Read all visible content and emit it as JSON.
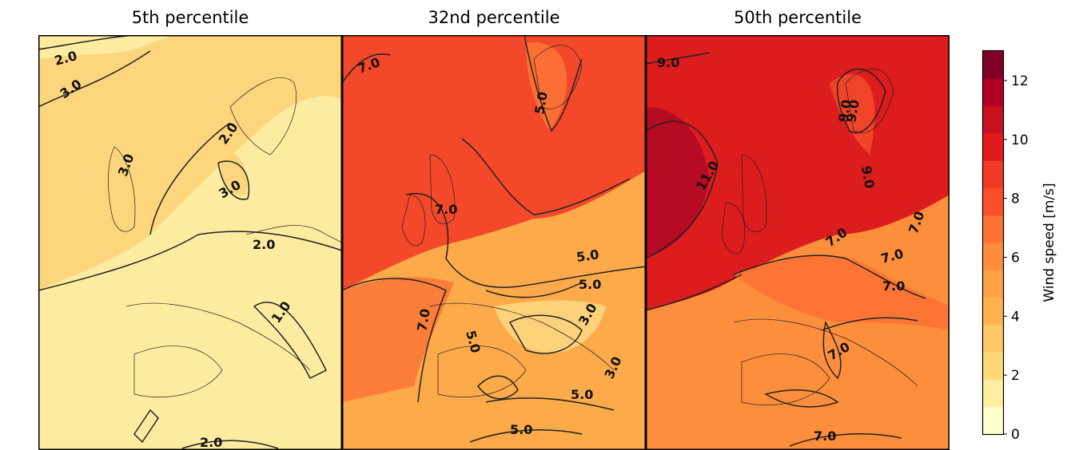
{
  "panels": [
    {
      "title": "5th percentile",
      "contour_labels": [
        "2.0",
        "3.0",
        "3.0",
        "2.0",
        "3.0",
        "2.0",
        "1.0",
        "2.0"
      ]
    },
    {
      "title": "32nd percentile",
      "contour_labels": [
        "7.0",
        "5.0",
        "7.0",
        "5.0",
        "5.0",
        "7.0",
        "3.0",
        "5.0",
        "3.0",
        "5.0",
        "5.0"
      ]
    },
    {
      "title": "50th percentile",
      "contour_labels": [
        "9.0",
        "9.0",
        "9.0",
        "11.0",
        "9.0",
        "7.0",
        "7.0",
        "7.0",
        "7.0",
        "7.0",
        "7.0"
      ]
    }
  ],
  "colorbar": {
    "label": "Wind speed [m/s]",
    "ticks": [
      "0",
      "2",
      "4",
      "6",
      "8",
      "10",
      "12"
    ],
    "range": [
      0,
      13
    ],
    "colors": [
      "#ffffcc",
      "#ffeda0",
      "#fed976",
      "#fdc967",
      "#feb24c",
      "#fea245",
      "#fd8d3c",
      "#fd7235",
      "#fc4e2a",
      "#f03a24",
      "#e31a1c",
      "#c8101f",
      "#b10026",
      "#800026"
    ]
  }
}
